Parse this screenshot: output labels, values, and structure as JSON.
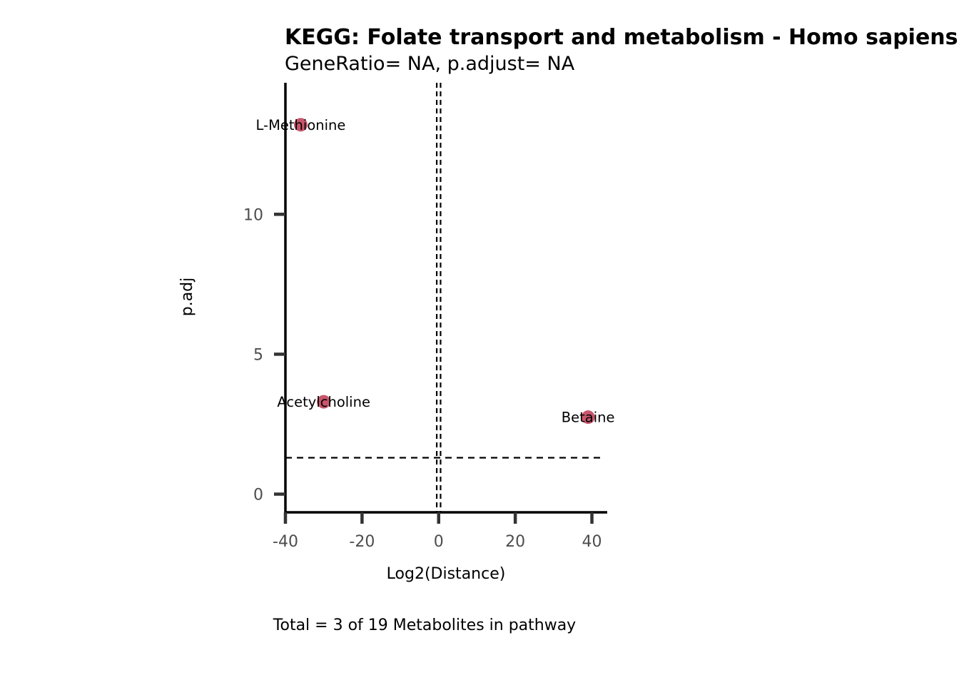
{
  "chart_data": {
    "type": "scatter",
    "title": "KEGG: Folate transport and metabolism - Homo sapiens (human)",
    "subtitle": "GeneRatio= NA, p.adjust= NA",
    "xlabel": "Log2(Distance)",
    "ylabel": "p.adj",
    "caption": "Total = 3 of 19 Metabolites in pathway",
    "xlim": [
      -40,
      44
    ],
    "ylim": [
      -0.65,
      14.7
    ],
    "xticks": [
      -40,
      -20,
      0,
      20,
      40
    ],
    "xtick_labels": [
      "-40",
      "-20",
      "0",
      "20",
      "40"
    ],
    "yticks": [
      0,
      5,
      10
    ],
    "ytick_labels": [
      "0",
      "5",
      "10"
    ],
    "point_color": "#c8566b",
    "reference_lines": {
      "vertical": [
        -0.5,
        0.5
      ],
      "horizontal": 1.3,
      "style": "dashed"
    },
    "points": [
      {
        "label": "L-Methionine",
        "x": -36,
        "y": 13.2
      },
      {
        "label": "Acetylcholine",
        "x": -30,
        "y": 3.3
      },
      {
        "label": "Betaine",
        "x": 39,
        "y": 2.75
      }
    ],
    "grid": false,
    "legend": "none"
  }
}
